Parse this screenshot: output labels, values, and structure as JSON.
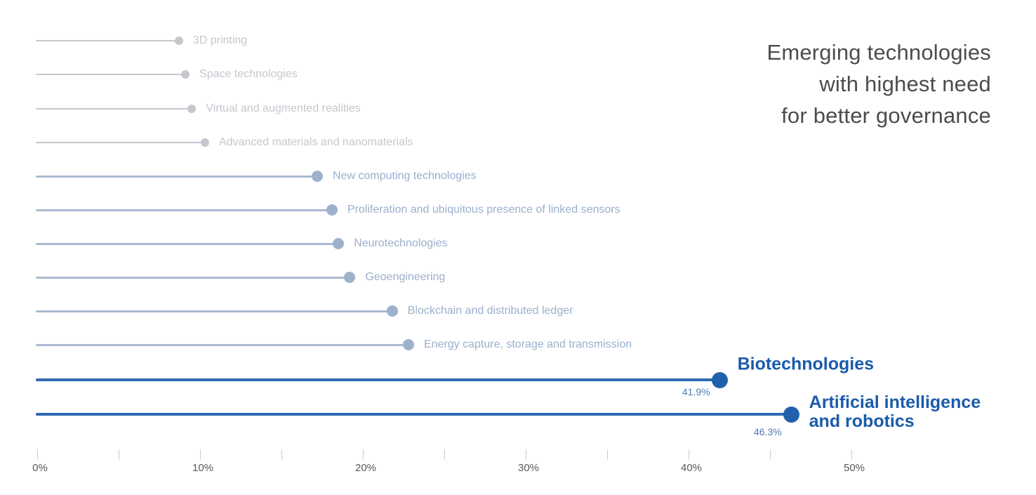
{
  "title": {
    "line1": "Emerging technologies",
    "line2": "with highest need",
    "line3": "for better governance"
  },
  "chart_data": {
    "type": "lollipop",
    "title": "Emerging technologies with highest need for better governance",
    "xlabel": "",
    "ylabel": "",
    "axis": {
      "min": 0,
      "max": 50,
      "minor_step": 5,
      "major_step": 10,
      "suffix": "%",
      "tick_labels": [
        "0%",
        "10%",
        "20%",
        "30%",
        "40%",
        "50%"
      ],
      "grid": false
    },
    "series": [
      {
        "label": "3D printing",
        "value": 8.7,
        "tier": "light"
      },
      {
        "label": "Space technologies",
        "value": 9.1,
        "tier": "light"
      },
      {
        "label": "Virtual and augmented realities",
        "value": 9.5,
        "tier": "light"
      },
      {
        "label": "Advanced materials and nanomaterials",
        "value": 10.3,
        "tier": "light"
      },
      {
        "label": "New computing technologies",
        "value": 17.2,
        "tier": "mid"
      },
      {
        "label": "Proliferation and ubiquitous presence of linked sensors",
        "value": 18.1,
        "tier": "mid"
      },
      {
        "label": "Neurotechnologies",
        "value": 18.5,
        "tier": "mid"
      },
      {
        "label": "Geoengineering",
        "value": 19.2,
        "tier": "mid"
      },
      {
        "label": "Blockchain and distributed ledger",
        "value": 21.8,
        "tier": "mid"
      },
      {
        "label": "Energy capture, storage and transmission",
        "value": 22.8,
        "tier": "mid"
      },
      {
        "label": "Biotechnologies",
        "value": 41.9,
        "value_label": "41.9%",
        "tier": "dark"
      },
      {
        "label": "Artificial intelligence and robotics",
        "label_lines": [
          "Artificial intelligence",
          "and robotics"
        ],
        "value": 46.3,
        "value_label": "46.3%",
        "tier": "dark"
      }
    ]
  },
  "colors": {
    "light": "#c4c7cd",
    "mid_dot": "#9db1cd",
    "mid_line": "#abbad3",
    "dark_dot": "#2161ac",
    "dark_line": "#2e6ab1",
    "dark_label": "#1b5baa",
    "value_label": "#4e79b7",
    "title_text": "#4c4c4c",
    "axis_text": "#58585a",
    "axis_tick": "#cbccce",
    "background": "#ffffff"
  }
}
